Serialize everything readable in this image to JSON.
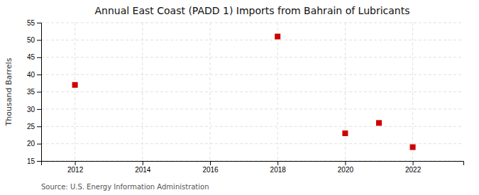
{
  "chart_data": {
    "type": "scatter",
    "title": "Annual East Coast (PADD 1) Imports from Bahrain of Lubricants",
    "ylabel": "Thousand Barrels",
    "annotation": "Source: U.S. Energy Information Administration",
    "x": [
      2012,
      2018,
      2020,
      2021,
      2022
    ],
    "values": [
      37,
      51,
      23,
      26,
      19
    ],
    "color": "#CC0000",
    "marker": "square",
    "xlim": [
      2011.0,
      2023.5
    ],
    "ylim": [
      15,
      55
    ],
    "xticks": [
      2012,
      2014,
      2016,
      2018,
      2020,
      2022
    ],
    "yticks": [
      15,
      20,
      25,
      30,
      35,
      40,
      45,
      50,
      55
    ],
    "grid": true
  }
}
